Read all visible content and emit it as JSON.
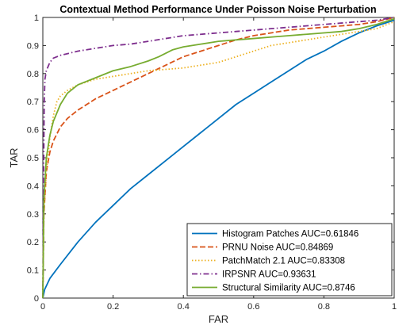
{
  "chart_data": {
    "type": "line",
    "title": "Contextual Method Performance Under Poisson Noise Perturbation",
    "xlabel": "FAR",
    "ylabel": "TAR",
    "xlim": [
      0,
      1
    ],
    "ylim": [
      0,
      1
    ],
    "xticks": [
      0,
      0.2,
      0.4,
      0.6,
      0.8,
      1
    ],
    "yticks": [
      0,
      0.1,
      0.2,
      0.3,
      0.4,
      0.5,
      0.6,
      0.7,
      0.8,
      0.9,
      1
    ],
    "xtick_labels": [
      "0",
      "0.2",
      "0.4",
      "0.6",
      "0.8",
      "1"
    ],
    "ytick_labels": [
      "0",
      "0.1",
      "0.2",
      "0.3",
      "0.4",
      "0.5",
      "0.6",
      "0.7",
      "0.8",
      "0.9",
      "1"
    ],
    "grid": false,
    "legend_position": "bottom-right",
    "series": [
      {
        "name": "Histogram Patches AUC=0.61846",
        "color": "#0072BD",
        "dash": "solid",
        "x": [
          0,
          0.005,
          0.02,
          0.05,
          0.1,
          0.15,
          0.2,
          0.25,
          0.3,
          0.35,
          0.4,
          0.45,
          0.5,
          0.55,
          0.6,
          0.65,
          0.7,
          0.75,
          0.8,
          0.85,
          0.9,
          0.95,
          1.0
        ],
        "y": [
          0,
          0.03,
          0.07,
          0.12,
          0.2,
          0.27,
          0.33,
          0.39,
          0.44,
          0.49,
          0.54,
          0.59,
          0.64,
          0.69,
          0.73,
          0.77,
          0.81,
          0.85,
          0.88,
          0.915,
          0.945,
          0.97,
          0.99
        ]
      },
      {
        "name": "PRNU Noise AUC=0.84869",
        "color": "#D95319",
        "dash": "dashed",
        "x": [
          0,
          0.003,
          0.01,
          0.02,
          0.03,
          0.05,
          0.07,
          0.1,
          0.15,
          0.2,
          0.25,
          0.3,
          0.35,
          0.4,
          0.45,
          0.5,
          0.55,
          0.6,
          0.65,
          0.7,
          0.75,
          0.8,
          0.85,
          0.9,
          0.95,
          1.0
        ],
        "y": [
          0,
          0.3,
          0.45,
          0.52,
          0.56,
          0.61,
          0.64,
          0.67,
          0.71,
          0.74,
          0.77,
          0.8,
          0.83,
          0.86,
          0.88,
          0.9,
          0.92,
          0.935,
          0.945,
          0.955,
          0.96,
          0.965,
          0.97,
          0.975,
          0.985,
          1.0
        ]
      },
      {
        "name": "PatchMatch 2.1 AUC=0.83308",
        "color": "#EDB120",
        "dash": "dotted",
        "x": [
          0,
          0.003,
          0.01,
          0.02,
          0.03,
          0.04,
          0.05,
          0.07,
          0.1,
          0.15,
          0.2,
          0.25,
          0.3,
          0.35,
          0.4,
          0.45,
          0.5,
          0.55,
          0.6,
          0.65,
          0.7,
          0.75,
          0.8,
          0.85,
          0.9,
          0.95,
          1.0
        ],
        "y": [
          0,
          0.3,
          0.45,
          0.57,
          0.65,
          0.7,
          0.72,
          0.74,
          0.76,
          0.78,
          0.79,
          0.8,
          0.81,
          0.815,
          0.82,
          0.83,
          0.84,
          0.86,
          0.88,
          0.9,
          0.91,
          0.92,
          0.93,
          0.94,
          0.95,
          0.96,
          0.985
        ]
      },
      {
        "name": "IRPSNR AUC=0.93631",
        "color": "#7E2F8E",
        "dash": "dashdot",
        "x": [
          0,
          0.002,
          0.004,
          0.006,
          0.01,
          0.02,
          0.03,
          0.05,
          0.1,
          0.15,
          0.2,
          0.25,
          0.3,
          0.35,
          0.4,
          0.45,
          0.5,
          0.55,
          0.6,
          0.65,
          0.7,
          0.75,
          0.8,
          0.85,
          0.9,
          0.95,
          1.0
        ],
        "y": [
          0,
          0.4,
          0.7,
          0.78,
          0.81,
          0.84,
          0.855,
          0.865,
          0.88,
          0.89,
          0.9,
          0.905,
          0.915,
          0.925,
          0.935,
          0.94,
          0.945,
          0.95,
          0.955,
          0.96,
          0.965,
          0.97,
          0.975,
          0.98,
          0.985,
          0.99,
          1.0
        ]
      },
      {
        "name": "Structural Similarity AUC=0.8746",
        "color": "#77AC30",
        "dash": "solid",
        "x": [
          0,
          0.003,
          0.01,
          0.02,
          0.03,
          0.05,
          0.07,
          0.1,
          0.15,
          0.2,
          0.25,
          0.3,
          0.33,
          0.37,
          0.4,
          0.45,
          0.5,
          0.55,
          0.6,
          0.65,
          0.7,
          0.75,
          0.8,
          0.85,
          0.9,
          0.95,
          1.0
        ],
        "y": [
          0,
          0.35,
          0.5,
          0.58,
          0.63,
          0.69,
          0.73,
          0.76,
          0.785,
          0.81,
          0.825,
          0.845,
          0.86,
          0.885,
          0.895,
          0.905,
          0.915,
          0.92,
          0.925,
          0.93,
          0.935,
          0.94,
          0.945,
          0.95,
          0.96,
          0.975,
          0.995
        ]
      }
    ]
  }
}
